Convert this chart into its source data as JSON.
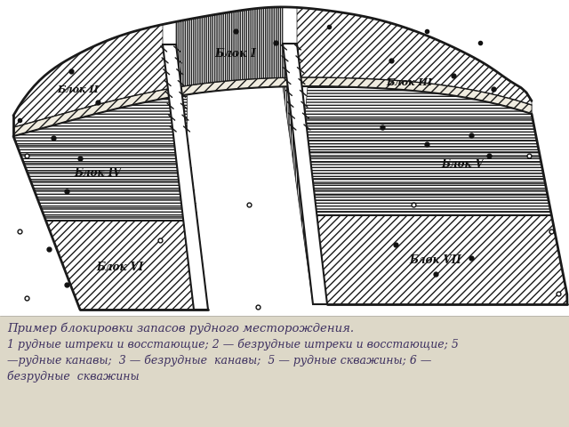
{
  "caption_line1": "Пример блокировки запасов рудного месторождения.",
  "caption_line2": "1 рудные штреки и восстающие; 2 — безрудные штреки и восстающие; 5",
  "caption_line3": "—рудные канавы;  3 — безрудные  канавы;  5 — рудные скважины; 6 —",
  "caption_line4": "безрудные  скважины",
  "bg_color": "#ffffff",
  "caption_bg": "#ddd8c8",
  "ec": "#1a1a1a",
  "caption_color": "#3d3060",
  "blok1_hatch": "|||||||",
  "blok23_hatch": "////",
  "blok45_hatch": "-----",
  "blok67_hatch": "////",
  "blok_label_color": "#111111",
  "dot_color": "#111111",
  "hollow_color": "#111111"
}
